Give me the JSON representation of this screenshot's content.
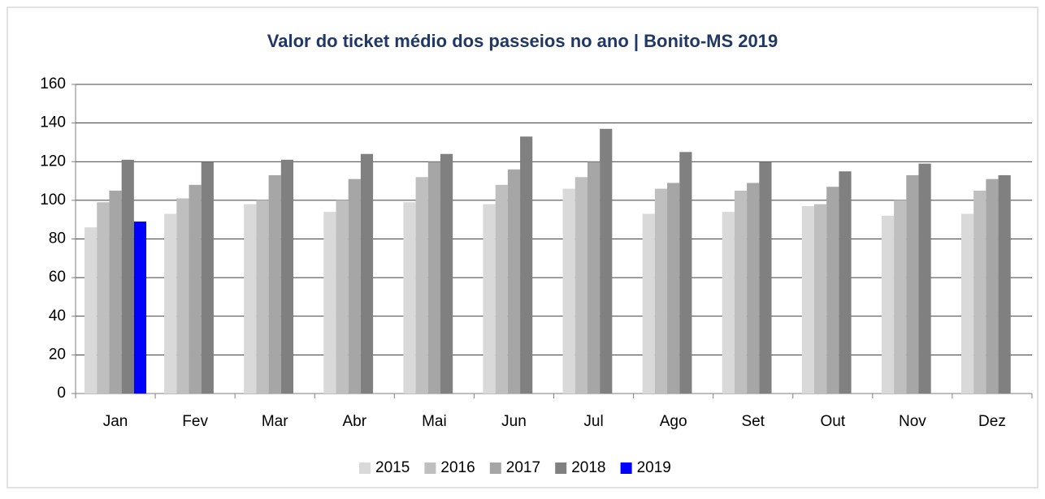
{
  "chart_data": {
    "type": "bar",
    "title": "Valor do ticket médio dos passeios no ano | Bonito-MS 2019",
    "categories": [
      "Jan",
      "Fev",
      "Mar",
      "Abr",
      "Mai",
      "Jun",
      "Jul",
      "Ago",
      "Set",
      "Out",
      "Nov",
      "Dez"
    ],
    "series": [
      {
        "name": "2015",
        "color": "#d9d9d9",
        "values": [
          86,
          93,
          98,
          94,
          99,
          98,
          106,
          93,
          94,
          97,
          92,
          93
        ]
      },
      {
        "name": "2016",
        "color": "#bfbfbf",
        "values": [
          99,
          101,
          100,
          100,
          112,
          108,
          112,
          106,
          105,
          98,
          100,
          105
        ]
      },
      {
        "name": "2017",
        "color": "#a6a6a6",
        "values": [
          105,
          108,
          113,
          111,
          120,
          116,
          120,
          109,
          109,
          107,
          113,
          111
        ]
      },
      {
        "name": "2018",
        "color": "#808080",
        "values": [
          121,
          120,
          121,
          124,
          124,
          133,
          137,
          125,
          120,
          115,
          119,
          113
        ]
      },
      {
        "name": "2019",
        "color": "#0000ff",
        "values": [
          89,
          null,
          null,
          null,
          null,
          null,
          null,
          null,
          null,
          null,
          null,
          null
        ]
      }
    ],
    "ylim": [
      0,
      160
    ],
    "yticks": [
      0,
      20,
      40,
      60,
      80,
      100,
      120,
      140,
      160
    ],
    "grid": true,
    "legend": "bottom"
  }
}
